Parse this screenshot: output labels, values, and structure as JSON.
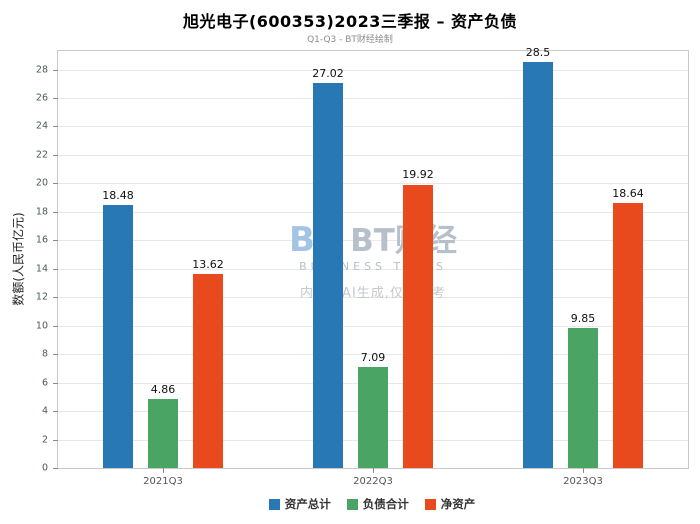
{
  "header": {
    "title": "旭光电子(600353)2023三季报 – 资产负债",
    "subtitle": "Q1-Q3 - BT财经绘制"
  },
  "watermark": {
    "logo_text": "BT",
    "brand": "BT财经",
    "tagline": "BUSINESS TIMES",
    "disclaimer": "内容由AI生成,仅供参考"
  },
  "chart_data": {
    "type": "bar",
    "title": "旭光电子(600353)2023三季报 – 资产负债",
    "subtitle": "Q1-Q3 - BT财经绘制",
    "categories": [
      "2021Q3",
      "2022Q3",
      "2023Q3"
    ],
    "series": [
      {
        "key": "assets",
        "name": "资产总计",
        "color": "#2878b5",
        "values": [
          18.48,
          27.02,
          28.5
        ]
      },
      {
        "key": "liabilities",
        "name": "负债合计",
        "color": "#4aa564",
        "values": [
          4.86,
          7.09,
          9.85
        ]
      },
      {
        "key": "net-assets",
        "name": "净资产",
        "color": "#e8491d",
        "values": [
          13.62,
          19.92,
          18.64
        ]
      }
    ],
    "xlabel": "",
    "ylabel": "数额(人民币亿元)",
    "ylim": [
      0,
      29.3
    ],
    "yticks": [
      0,
      2,
      4,
      6,
      8,
      10,
      12,
      14,
      16,
      18,
      20,
      22,
      24,
      26,
      28
    ],
    "grid": true,
    "legend_position": "bottom"
  }
}
